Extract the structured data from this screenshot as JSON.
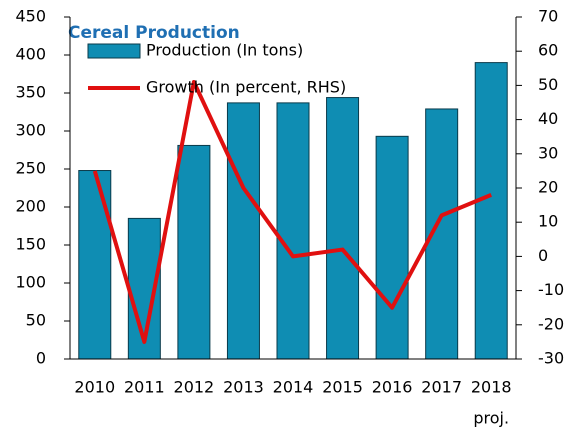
{
  "chart_data": {
    "type": "bar_line",
    "title": "Cereal Production",
    "categories": [
      "2010",
      "2011",
      "2012",
      "2013",
      "2014",
      "2015",
      "2016",
      "2017",
      "2018"
    ],
    "annotation": "proj.",
    "series": [
      {
        "name": "Production (In tons)",
        "type": "bar",
        "color": "#0f8db3",
        "values": [
          248,
          185,
          281,
          337,
          337,
          344,
          293,
          329,
          390
        ]
      },
      {
        "name": "Growth (In percent, RHS)",
        "type": "line",
        "axis": "y2",
        "color": "#e01010",
        "values": [
          25,
          -25,
          51,
          20,
          0,
          2,
          -15,
          12,
          18
        ]
      }
    ],
    "ylim": [
      0,
      450
    ],
    "yticks": [
      0,
      50,
      100,
      150,
      200,
      250,
      300,
      350,
      400,
      450
    ],
    "y2lim": [
      -30,
      70
    ],
    "y2ticks": [
      -30,
      -20,
      -10,
      0,
      10,
      20,
      30,
      40,
      50,
      60,
      70
    ],
    "grid": false
  }
}
